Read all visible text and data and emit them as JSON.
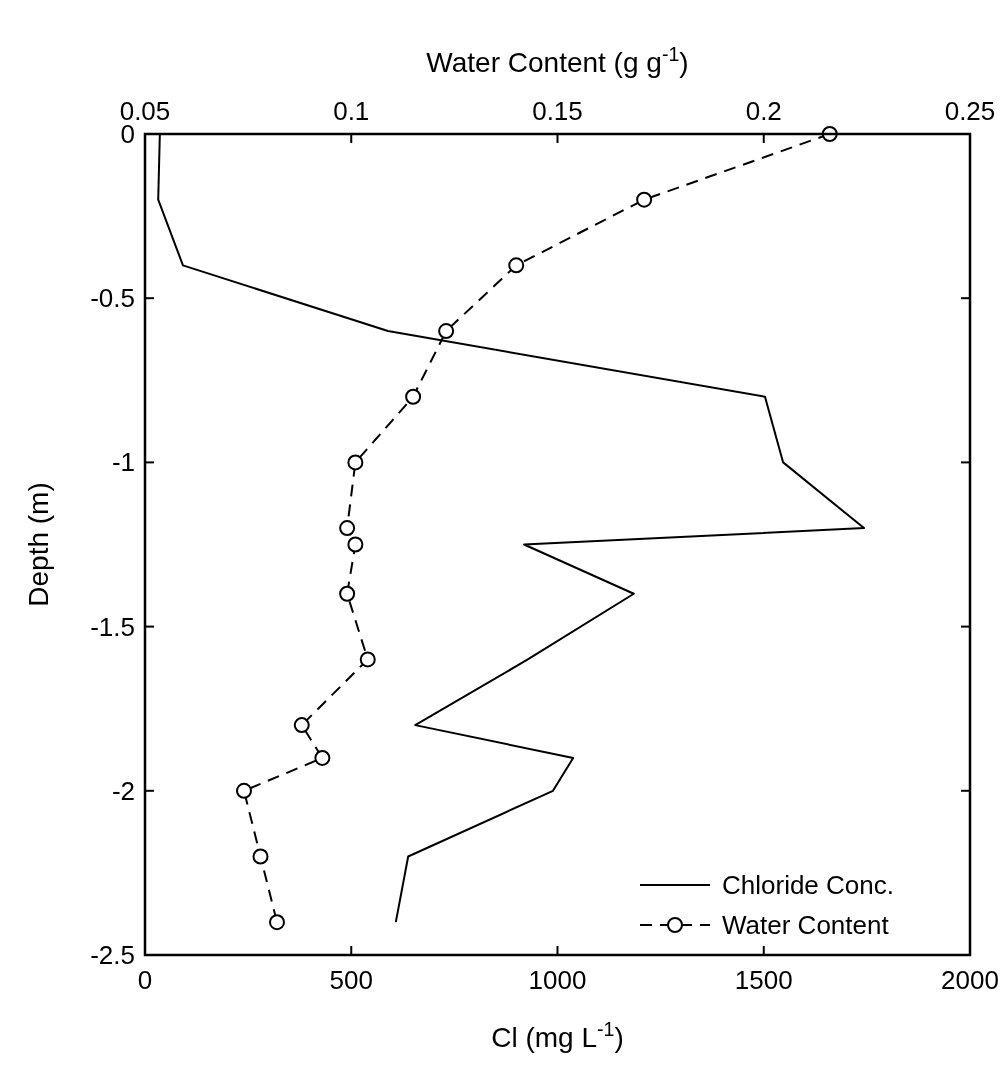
{
  "chart_data": {
    "type": "line",
    "xlabel": "Cl (mg L$^{-1}$)",
    "x2label": "Water Content (g g$^{-1}$)",
    "ylabel": "Depth (m)",
    "xlim": [
      0,
      2000
    ],
    "xticks": [
      0,
      500,
      1000,
      1500,
      2000
    ],
    "x2lim": [
      0.05,
      0.25
    ],
    "x2ticks": [
      0.05,
      0.1,
      0.15,
      0.2,
      0.25
    ],
    "ylim": [
      -2.5,
      0
    ],
    "yticks": [
      0,
      -0.5,
      -1,
      -1.5,
      -2,
      -2.5
    ],
    "grid": false,
    "legend": "bottom right",
    "series": [
      {
        "name": "Chloride Conc.",
        "color": "#000000",
        "line_style": "solid",
        "marker": "none",
        "x": [
          36,
          32,
          92,
          589,
          1503,
          1547,
          1743,
          919,
          1185,
          928,
          655,
          1038,
          989,
          638,
          608
        ],
        "values": [
          0,
          -0.2,
          -0.4,
          -0.6,
          -0.8,
          -1,
          -1.2,
          -1.25,
          -1.4,
          -1.6,
          -1.8,
          -1.9,
          -2,
          -2.2,
          -2.4
        ]
      },
      {
        "name": "Water Content",
        "color": "#000000",
        "line_style": "dashed",
        "marker": "circle",
        "axis": "x2",
        "x": [
          0.216,
          0.171,
          0.14,
          0.123,
          0.115,
          0.101,
          0.099,
          0.101,
          0.099,
          0.104,
          0.088,
          0.093,
          0.074,
          0.078,
          0.082
        ],
        "values": [
          0,
          -0.2,
          -0.4,
          -0.6,
          -0.8,
          -1,
          -1.2,
          -1.25,
          -1.4,
          -1.6,
          -1.8,
          -1.9,
          -2,
          -2.2,
          -2.4
        ]
      }
    ]
  }
}
